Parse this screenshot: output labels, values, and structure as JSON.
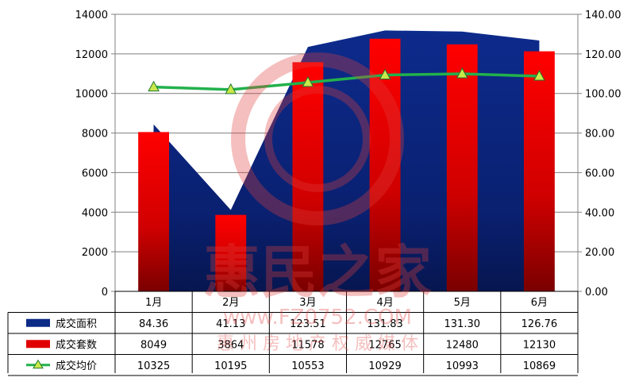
{
  "chart_data": {
    "type": "bar",
    "categories": [
      "1月",
      "2月",
      "3月",
      "4月",
      "5月",
      "6月"
    ],
    "series": [
      {
        "name": "成交面积",
        "kind": "area",
        "axis": "right",
        "color": "#0c2a86",
        "values": [
          84.36,
          41.13,
          123.51,
          131.83,
          131.3,
          126.76
        ],
        "labels": [
          "84.36",
          "41.13",
          "123.51",
          "131.83",
          "131.30",
          "126.76"
        ]
      },
      {
        "name": "成交套数",
        "kind": "bar",
        "axis": "left",
        "color": "#e00000",
        "values": [
          8049,
          3864,
          11578,
          12765,
          12480,
          12130
        ],
        "labels": [
          "8049",
          "3864",
          "11578",
          "12765",
          "12480",
          "12130"
        ]
      },
      {
        "name": "成交均价",
        "kind": "line",
        "axis": "right",
        "color": "#22b14c",
        "values": [
          10325,
          10195,
          10553,
          10929,
          10993,
          10869
        ],
        "labels": [
          "10325",
          "10195",
          "10553",
          "10929",
          "10993",
          "10869"
        ]
      }
    ],
    "y_left": {
      "min": 0,
      "max": 14000,
      "step": 2000,
      "ticks": [
        "0",
        "2000",
        "4000",
        "6000",
        "8000",
        "10000",
        "12000",
        "14000"
      ]
    },
    "y_right": {
      "min": 0,
      "max": 140,
      "step": 20,
      "ticks": [
        "0.00",
        "20.00",
        "40.00",
        "60.00",
        "80.00",
        "100.00",
        "120.00",
        "140.00"
      ]
    },
    "grid": true,
    "legend": "data-table"
  },
  "watermark": {
    "title": "惠民之家",
    "url": "www.FZ0752.COM",
    "subtitle": "惠 州 房 地 产 权 威 媒 体"
  }
}
